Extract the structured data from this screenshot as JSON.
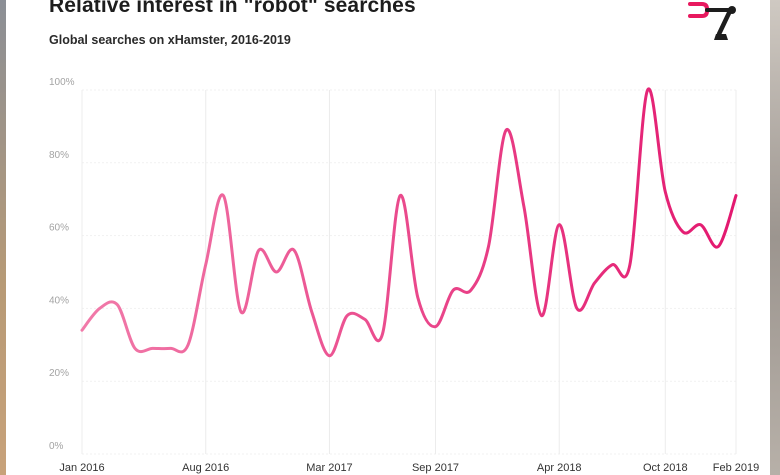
{
  "header": {
    "title": "Relative interest in \"robot\" searches",
    "subtitle": "Global searches on xHamster, 2016-2019"
  },
  "logo": {
    "icon": "robot-arm-logo-icon"
  },
  "colors": {
    "line_start": "#f17aa9",
    "line_end": "#e3186f",
    "logo_pink": "#e8195f",
    "logo_dark": "#1d1d1d"
  },
  "chart_data": {
    "type": "line",
    "title": "Relative interest in \"robot\" searches",
    "subtitle": "Global searches on xHamster, 2016-2019",
    "xlabel": "",
    "ylabel": "",
    "ylim": [
      0,
      100
    ],
    "yticks": [
      "0%",
      "20%",
      "40%",
      "60%",
      "80%",
      "100%"
    ],
    "xticks": [
      "Jan 2016",
      "Aug 2016",
      "Mar 2017",
      "Sep 2017",
      "Apr 2018",
      "Oct 2018",
      "Feb 2019"
    ],
    "grid": true,
    "legend": "none",
    "x": [
      "2016-01",
      "2016-02",
      "2016-03",
      "2016-04",
      "2016-05",
      "2016-06",
      "2016-07",
      "2016-08",
      "2016-09",
      "2016-10",
      "2016-11",
      "2016-12",
      "2017-01",
      "2017-02",
      "2017-03",
      "2017-04",
      "2017-05",
      "2017-06",
      "2017-07",
      "2017-08",
      "2017-09",
      "2017-10",
      "2017-11",
      "2017-12",
      "2018-01",
      "2018-02",
      "2018-03",
      "2018-04",
      "2018-05",
      "2018-06",
      "2018-07",
      "2018-08",
      "2018-09",
      "2018-10",
      "2018-11",
      "2018-12",
      "2019-01",
      "2019-02"
    ],
    "series": [
      {
        "values": [
          34,
          40,
          41,
          29,
          29,
          29,
          30,
          52,
          71,
          39,
          56,
          50,
          56,
          39,
          27,
          38,
          37,
          33,
          71,
          43,
          35,
          45,
          45,
          57,
          89,
          68,
          38,
          63,
          40,
          47,
          52,
          52,
          100,
          72,
          61,
          63,
          57,
          71
        ]
      }
    ]
  }
}
